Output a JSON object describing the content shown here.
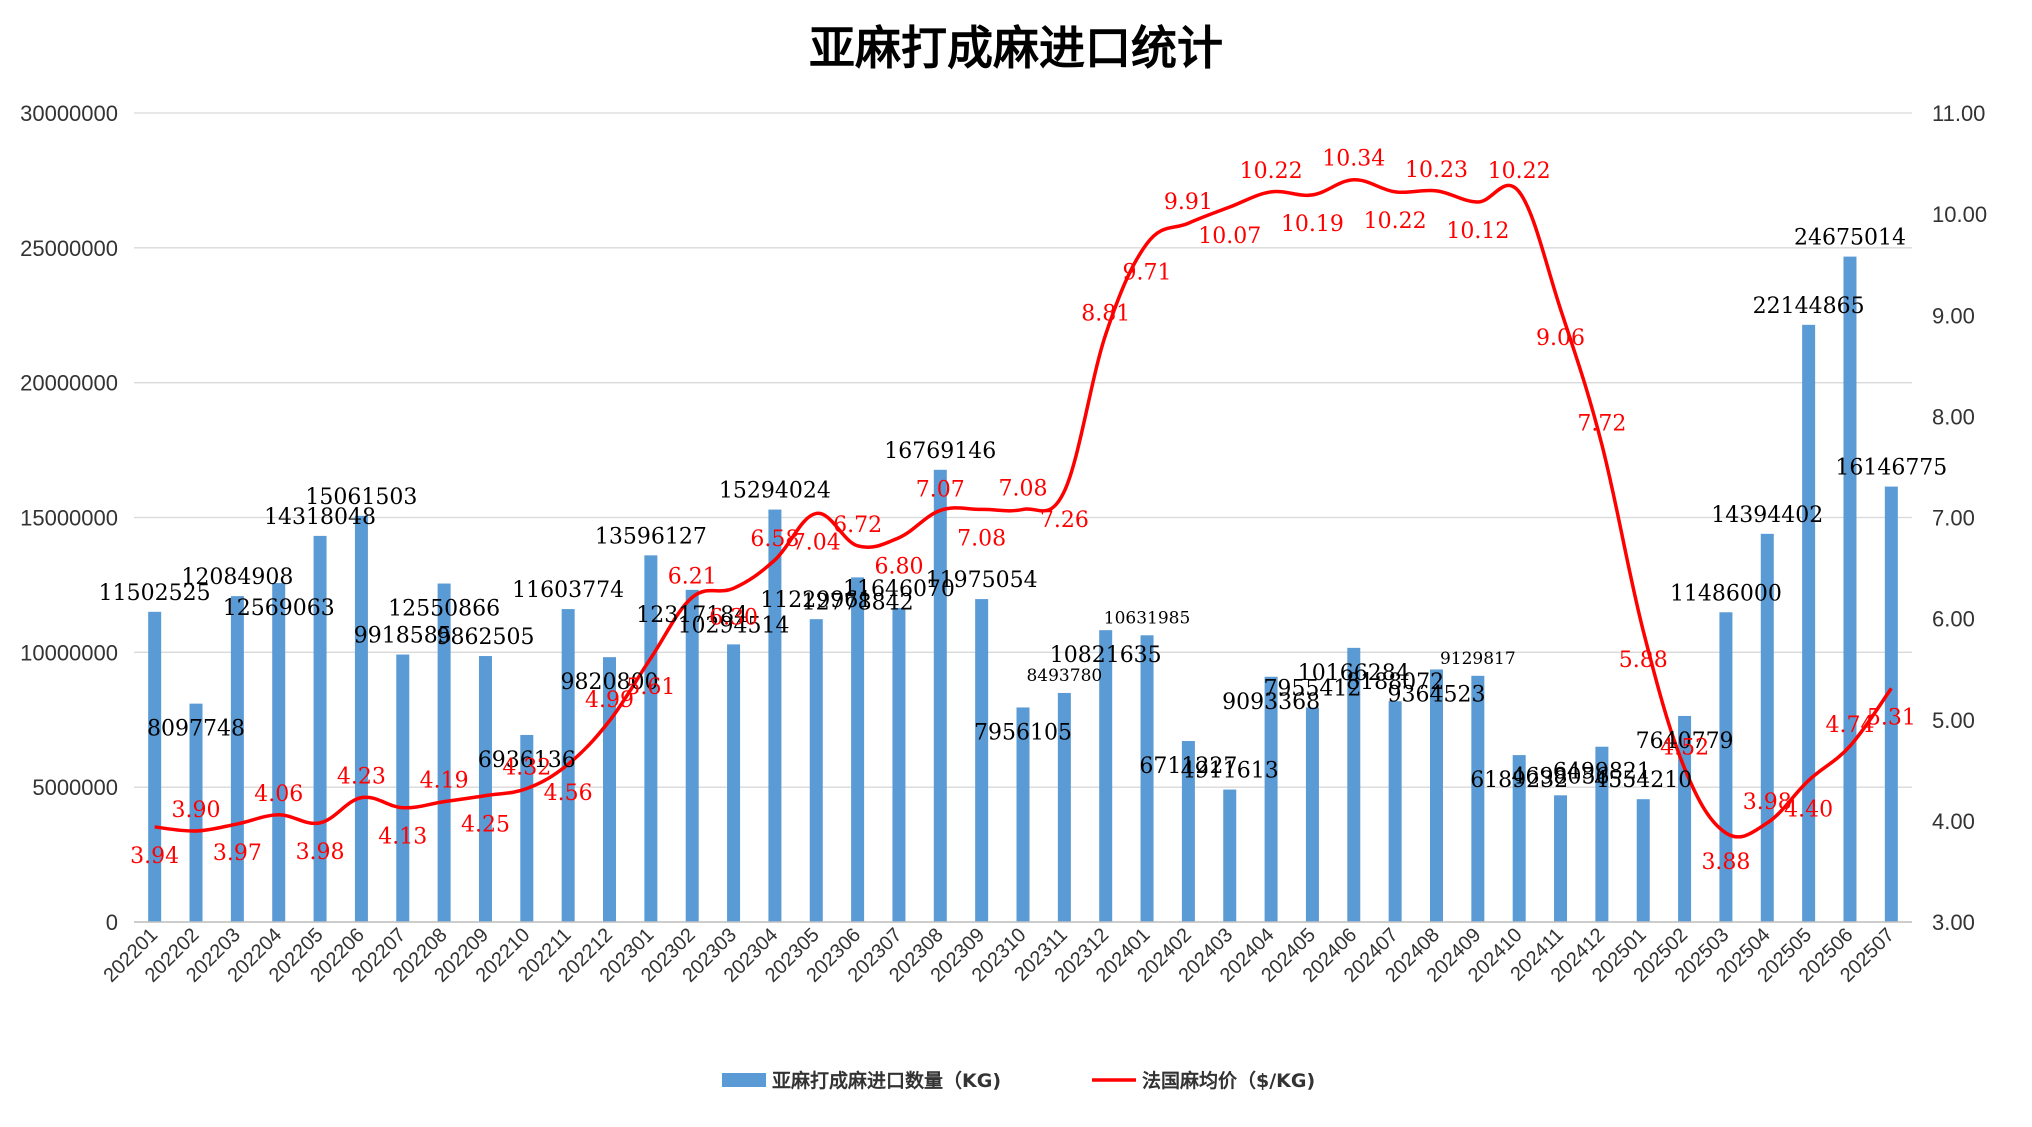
{
  "chart_data": {
    "type": "bar+line",
    "title": "亚麻打成麻进口统计",
    "categories": [
      "202201",
      "202202",
      "202203",
      "202204",
      "202205",
      "202206",
      "202207",
      "202208",
      "202209",
      "202210",
      "202211",
      "202212",
      "202301",
      "202302",
      "202303",
      "202304",
      "202305",
      "202306",
      "202307",
      "202308",
      "202309",
      "202310",
      "202311",
      "202312",
      "202401",
      "202402",
      "202403",
      "202404",
      "202405",
      "202406",
      "202407",
      "202408",
      "202409",
      "202410",
      "202411",
      "202412",
      "202501",
      "202502",
      "202503",
      "202504",
      "202505",
      "202506",
      "202507"
    ],
    "series": [
      {
        "name": "亚麻打成麻进口数量（KG)",
        "type": "bar",
        "axis": "left",
        "color": "#5b9bd5",
        "values": [
          11502525,
          8097748,
          12084908,
          12569063,
          14318048,
          15061503,
          9918585,
          12550866,
          9862505,
          6936136,
          11603774,
          9820800,
          13596127,
          12317184,
          10294514,
          15294024,
          11229961,
          12778842,
          11646070,
          16769146,
          11975054,
          7956105,
          8493780,
          10821635,
          10631985,
          6711227,
          4911613,
          9093368,
          7955412,
          10166284,
          8188072,
          9364523,
          9129817,
          6189232,
          4698056,
          6499821,
          4554210,
          7640779,
          11486000,
          14394402,
          22144865,
          24675014,
          16146775
        ],
        "labels": [
          "11502525",
          "8097748",
          "12084908",
          "12569063",
          "14318048",
          "15061503",
          "9918585",
          "12550866",
          "9862505",
          "6936136",
          "11603774",
          "9820800",
          "13596127",
          "12317184",
          "10294514",
          "15294024",
          "11229961",
          "12778842",
          "11646070",
          "16769146",
          "11975054",
          "7956105",
          "8493780",
          "10821635",
          "10631985",
          "6711227",
          "4911613",
          "9093368",
          "7955412",
          "10166284",
          "8188072",
          "9364523",
          "9129817",
          "6189232",
          "4698056",
          "6499821",
          "4554210",
          "7640779",
          "11486000",
          "14394402",
          "22144865",
          "24675014",
          "16146775"
        ]
      },
      {
        "name": "法国麻均价（$/KG)",
        "type": "line",
        "axis": "right",
        "color": "#ff0000",
        "values": [
          3.94,
          3.9,
          3.97,
          4.06,
          3.98,
          4.23,
          4.13,
          4.19,
          4.25,
          4.32,
          4.56,
          4.99,
          5.61,
          6.21,
          6.3,
          6.58,
          7.04,
          6.72,
          6.8,
          7.07,
          7.08,
          7.08,
          7.26,
          8.81,
          9.71,
          9.91,
          10.07,
          10.22,
          10.19,
          10.34,
          10.22,
          10.23,
          10.12,
          10.22,
          9.06,
          7.72,
          5.88,
          4.52,
          3.88,
          3.98,
          4.4,
          4.74,
          5.31
        ],
        "labels": [
          "3.94",
          "3.90",
          "3.97",
          "4.06",
          "3.98",
          "4.23",
          "4.13",
          "4.19",
          "4.25",
          "4.32",
          "4.56",
          "4.99",
          "5.61",
          "6.21",
          "6.30",
          "6.58",
          "7.04",
          "6.72",
          "6.80",
          "7.07",
          "7.08",
          "7.08",
          "7.26",
          "8.81",
          "9.71",
          "9.91",
          "10.07",
          "10.22",
          "10.19",
          "10.34",
          "10.22",
          "10.23",
          "10.12",
          "10.22",
          "9.06",
          "7.72",
          "5.88",
          "4.52",
          "3.88",
          "3.98",
          "4.40",
          "4.74",
          "5.31"
        ]
      }
    ],
    "y_left": {
      "ylim": [
        0,
        30000000
      ],
      "ticks": [
        0,
        5000000,
        10000000,
        15000000,
        20000000,
        25000000,
        30000000
      ],
      "tick_labels": [
        "0",
        "5000000",
        "10000000",
        "15000000",
        "20000000",
        "25000000",
        "30000000"
      ]
    },
    "y_right": {
      "ylim": [
        3,
        11
      ],
      "ticks": [
        3,
        4,
        5,
        6,
        7,
        8,
        9,
        10,
        11
      ],
      "tick_labels": [
        "3.00",
        "4.00",
        "5.00",
        "6.00",
        "7.00",
        "8.00",
        "9.00",
        "10.00",
        "11.00"
      ]
    },
    "grid": true,
    "legend": "bottom-center"
  }
}
